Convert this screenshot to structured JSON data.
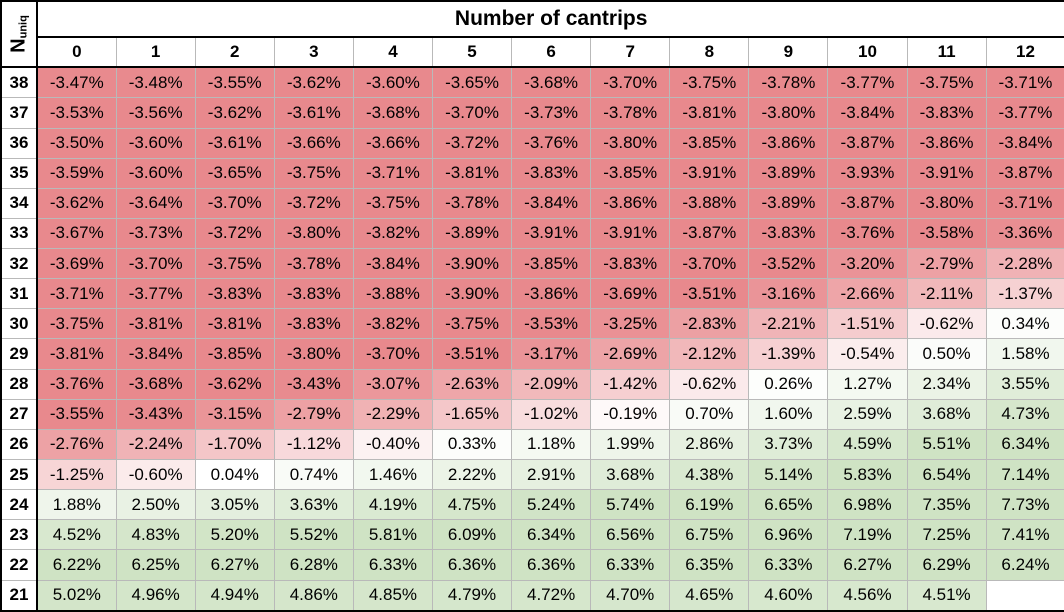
{
  "chart_data": {
    "type": "heatmap",
    "title": "Number of cantrips",
    "ylabel": "N",
    "ylabel_subscript": "uniq",
    "columns": [
      "0",
      "1",
      "2",
      "3",
      "4",
      "5",
      "6",
      "7",
      "8",
      "9",
      "10",
      "11",
      "12"
    ],
    "rows": [
      "38",
      "37",
      "36",
      "35",
      "34",
      "33",
      "32",
      "31",
      "30",
      "29",
      "28",
      "27",
      "26",
      "25",
      "24",
      "23",
      "22",
      "21"
    ],
    "values": [
      [
        "-3.47%",
        "-3.48%",
        "-3.55%",
        "-3.62%",
        "-3.60%",
        "-3.65%",
        "-3.68%",
        "-3.70%",
        "-3.75%",
        "-3.78%",
        "-3.77%",
        "-3.75%",
        "-3.71%"
      ],
      [
        "-3.53%",
        "-3.56%",
        "-3.62%",
        "-3.61%",
        "-3.68%",
        "-3.70%",
        "-3.73%",
        "-3.78%",
        "-3.81%",
        "-3.80%",
        "-3.84%",
        "-3.83%",
        "-3.77%"
      ],
      [
        "-3.50%",
        "-3.60%",
        "-3.61%",
        "-3.66%",
        "-3.66%",
        "-3.72%",
        "-3.76%",
        "-3.80%",
        "-3.85%",
        "-3.86%",
        "-3.87%",
        "-3.86%",
        "-3.84%"
      ],
      [
        "-3.59%",
        "-3.60%",
        "-3.65%",
        "-3.75%",
        "-3.71%",
        "-3.81%",
        "-3.83%",
        "-3.85%",
        "-3.91%",
        "-3.89%",
        "-3.93%",
        "-3.91%",
        "-3.87%"
      ],
      [
        "-3.62%",
        "-3.64%",
        "-3.70%",
        "-3.72%",
        "-3.75%",
        "-3.78%",
        "-3.84%",
        "-3.86%",
        "-3.88%",
        "-3.89%",
        "-3.87%",
        "-3.80%",
        "-3.71%"
      ],
      [
        "-3.67%",
        "-3.73%",
        "-3.72%",
        "-3.80%",
        "-3.82%",
        "-3.89%",
        "-3.91%",
        "-3.91%",
        "-3.87%",
        "-3.83%",
        "-3.76%",
        "-3.58%",
        "-3.36%"
      ],
      [
        "-3.69%",
        "-3.70%",
        "-3.75%",
        "-3.78%",
        "-3.84%",
        "-3.90%",
        "-3.85%",
        "-3.83%",
        "-3.70%",
        "-3.52%",
        "-3.20%",
        "-2.79%",
        "-2.28%"
      ],
      [
        "-3.71%",
        "-3.77%",
        "-3.83%",
        "-3.83%",
        "-3.88%",
        "-3.90%",
        "-3.86%",
        "-3.69%",
        "-3.51%",
        "-3.16%",
        "-2.66%",
        "-2.11%",
        "-1.37%"
      ],
      [
        "-3.75%",
        "-3.81%",
        "-3.81%",
        "-3.83%",
        "-3.82%",
        "-3.75%",
        "-3.53%",
        "-3.25%",
        "-2.83%",
        "-2.21%",
        "-1.51%",
        "-0.62%",
        "0.34%"
      ],
      [
        "-3.81%",
        "-3.84%",
        "-3.85%",
        "-3.80%",
        "-3.70%",
        "-3.51%",
        "-3.17%",
        "-2.69%",
        "-2.12%",
        "-1.39%",
        "-0.54%",
        "0.50%",
        "1.58%"
      ],
      [
        "-3.76%",
        "-3.68%",
        "-3.62%",
        "-3.43%",
        "-3.07%",
        "-2.63%",
        "-2.09%",
        "-1.42%",
        "-0.62%",
        "0.26%",
        "1.27%",
        "2.34%",
        "3.55%"
      ],
      [
        "-3.55%",
        "-3.43%",
        "-3.15%",
        "-2.79%",
        "-2.29%",
        "-1.65%",
        "-1.02%",
        "-0.19%",
        "0.70%",
        "1.60%",
        "2.59%",
        "3.68%",
        "4.73%"
      ],
      [
        "-2.76%",
        "-2.24%",
        "-1.70%",
        "-1.12%",
        "-0.40%",
        "0.33%",
        "1.18%",
        "1.99%",
        "2.86%",
        "3.73%",
        "4.59%",
        "5.51%",
        "6.34%"
      ],
      [
        "-1.25%",
        "-0.60%",
        "0.04%",
        "0.74%",
        "1.46%",
        "2.22%",
        "2.91%",
        "3.68%",
        "4.38%",
        "5.14%",
        "5.83%",
        "6.54%",
        "7.14%"
      ],
      [
        "1.88%",
        "2.50%",
        "3.05%",
        "3.63%",
        "4.19%",
        "4.75%",
        "5.24%",
        "5.74%",
        "6.19%",
        "6.65%",
        "6.98%",
        "7.35%",
        "7.73%"
      ],
      [
        "4.52%",
        "4.83%",
        "5.20%",
        "5.52%",
        "5.81%",
        "6.09%",
        "6.34%",
        "6.56%",
        "6.75%",
        "6.96%",
        "7.19%",
        "7.25%",
        "7.41%"
      ],
      [
        "6.22%",
        "6.25%",
        "6.27%",
        "6.28%",
        "6.33%",
        "6.36%",
        "6.36%",
        "6.33%",
        "6.35%",
        "6.33%",
        "6.27%",
        "6.29%",
        "6.24%"
      ],
      [
        "5.02%",
        "4.96%",
        "4.94%",
        "4.86%",
        "4.85%",
        "4.79%",
        "4.72%",
        "4.70%",
        "4.65%",
        "4.60%",
        "4.56%",
        "4.51%",
        ""
      ]
    ],
    "colors": {
      "negative": "#e8898d",
      "neutral": "#ffffff",
      "positive": "#cfe3c4"
    }
  }
}
